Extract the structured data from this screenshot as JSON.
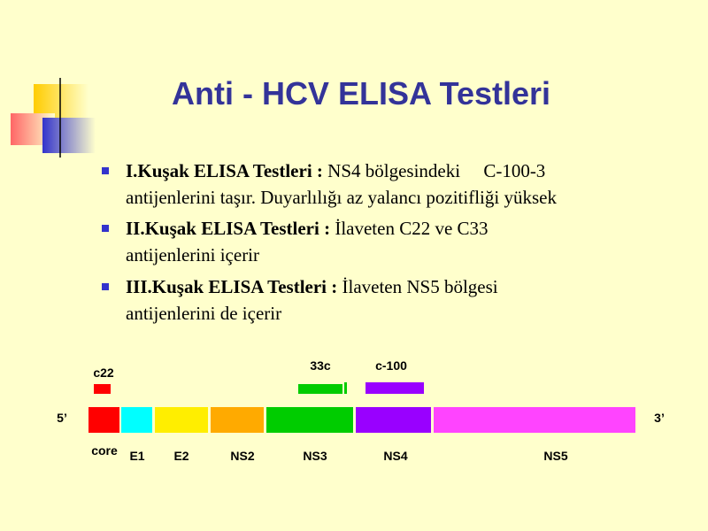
{
  "title": "Anti - HCV  ELISA Testleri",
  "bullets": [
    {
      "bold": "I.Kuşak ELISA Testleri :",
      "lines": [
        " NS4 bölgesindeki     C-100-3",
        "antijenlerini taşır. Duyarlılığı az yalancı pozitifliği yüksek"
      ]
    },
    {
      "bold": "II.Kuşak ELISA Testleri :",
      "lines": [
        " İlaveten C22 ve C33",
        "antijenlerini içerir"
      ]
    },
    {
      "bold": "III.Kuşak ELISA Testleri :",
      "lines": [
        " İlaveten NS5 bölgesi",
        "antijenlerini de içerir"
      ]
    }
  ],
  "diagram": {
    "end_5": "5’",
    "end_3": "3’",
    "antigens": [
      "c22",
      "33c",
      "c-100"
    ],
    "regions": [
      "core",
      "E1",
      "E2",
      "NS2",
      "NS3",
      "NS4",
      "NS5"
    ]
  }
}
